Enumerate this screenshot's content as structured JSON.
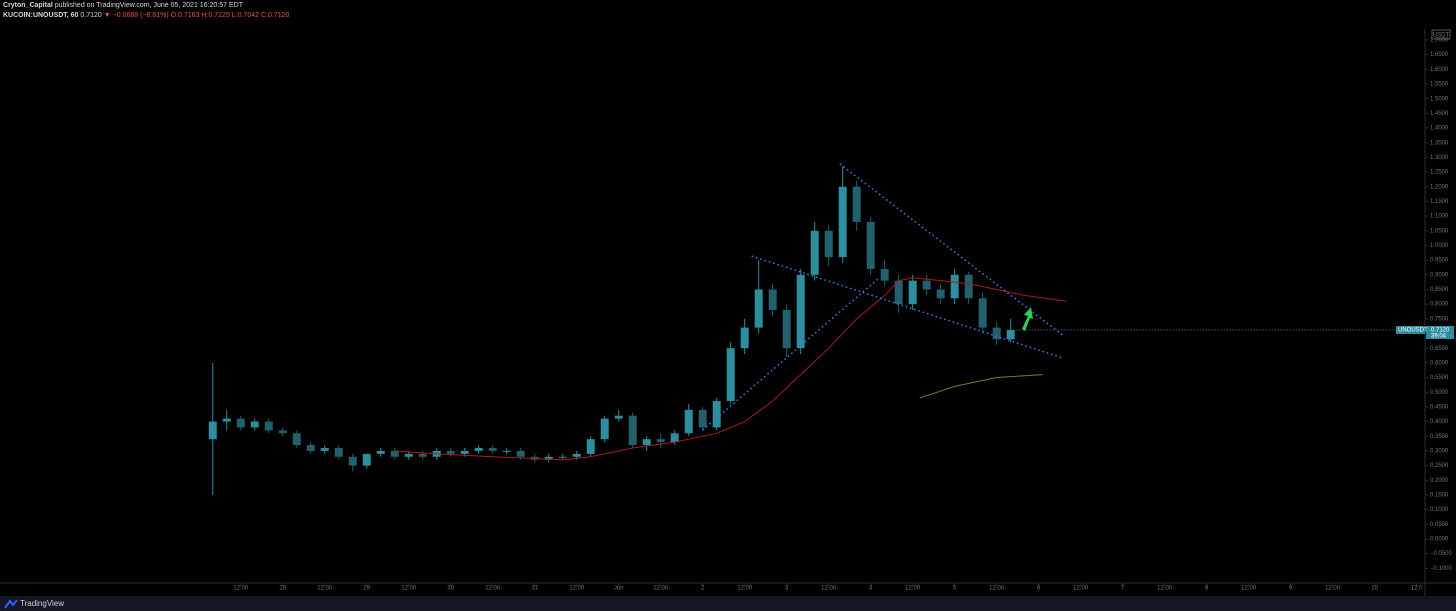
{
  "header": {
    "author": "Cryton_Capital",
    "published": "published on TradingView.com, June 05, 2021 16:20:57 EDT",
    "symbol": "KUCOIN:UNOUSDT, 60",
    "last": "0.7120",
    "change": "▼ −0.0688 (−8.81%)",
    "open": "O:0.7163",
    "high": "H:0.7225",
    "low": "L:0.7042",
    "close": "C:0.7120"
  },
  "chart_data": {
    "type": "candlestick",
    "x": [
      0,
      1,
      2,
      3,
      4,
      5,
      6,
      7,
      8,
      9,
      10,
      11,
      12,
      13,
      14,
      15,
      16,
      17,
      18,
      19,
      20,
      21,
      22,
      23,
      24,
      25,
      26,
      27,
      28,
      29,
      30,
      31,
      32,
      33,
      34,
      35,
      36,
      37,
      38,
      39,
      40,
      41,
      42,
      43,
      44,
      45,
      46,
      47,
      48,
      49,
      50,
      51,
      52,
      53,
      54,
      55,
      56,
      57
    ],
    "open": [
      0.34,
      0.4,
      0.41,
      0.38,
      0.4,
      0.37,
      0.36,
      0.32,
      0.3,
      0.31,
      0.28,
      0.25,
      0.29,
      0.3,
      0.28,
      0.29,
      0.28,
      0.3,
      0.29,
      0.3,
      0.31,
      0.3,
      0.3,
      0.28,
      0.27,
      0.28,
      0.28,
      0.29,
      0.34,
      0.41,
      0.42,
      0.32,
      0.34,
      0.33,
      0.36,
      0.44,
      0.38,
      0.47,
      0.65,
      0.72,
      0.85,
      0.78,
      0.65,
      0.9,
      1.05,
      0.96,
      1.2,
      1.08,
      0.92,
      0.88,
      0.8,
      0.88,
      0.85,
      0.82,
      0.9,
      0.82,
      0.72,
      0.68
    ],
    "high": [
      0.6,
      0.44,
      0.42,
      0.41,
      0.41,
      0.38,
      0.37,
      0.33,
      0.32,
      0.32,
      0.29,
      0.29,
      0.31,
      0.31,
      0.3,
      0.3,
      0.31,
      0.31,
      0.31,
      0.32,
      0.32,
      0.31,
      0.31,
      0.29,
      0.29,
      0.29,
      0.3,
      0.35,
      0.42,
      0.44,
      0.43,
      0.35,
      0.36,
      0.37,
      0.46,
      0.45,
      0.48,
      0.67,
      0.75,
      0.95,
      0.87,
      0.8,
      0.92,
      1.08,
      1.07,
      1.27,
      1.22,
      1.1,
      0.95,
      0.9,
      0.9,
      0.9,
      0.87,
      0.92,
      0.91,
      0.84,
      0.74,
      0.75
    ],
    "low": [
      0.15,
      0.37,
      0.37,
      0.37,
      0.36,
      0.35,
      0.31,
      0.29,
      0.29,
      0.27,
      0.23,
      0.24,
      0.28,
      0.27,
      0.27,
      0.27,
      0.27,
      0.28,
      0.28,
      0.29,
      0.29,
      0.29,
      0.27,
      0.26,
      0.26,
      0.27,
      0.27,
      0.28,
      0.33,
      0.4,
      0.31,
      0.3,
      0.31,
      0.32,
      0.35,
      0.37,
      0.37,
      0.46,
      0.63,
      0.7,
      0.76,
      0.62,
      0.63,
      0.88,
      0.93,
      0.94,
      1.05,
      0.9,
      0.86,
      0.77,
      0.78,
      0.83,
      0.8,
      0.8,
      0.8,
      0.7,
      0.66,
      0.67
    ],
    "close": [
      0.4,
      0.41,
      0.38,
      0.4,
      0.37,
      0.36,
      0.32,
      0.3,
      0.31,
      0.28,
      0.25,
      0.29,
      0.3,
      0.28,
      0.29,
      0.28,
      0.3,
      0.29,
      0.3,
      0.31,
      0.3,
      0.3,
      0.28,
      0.27,
      0.28,
      0.28,
      0.29,
      0.34,
      0.41,
      0.42,
      0.32,
      0.34,
      0.33,
      0.36,
      0.44,
      0.38,
      0.47,
      0.65,
      0.72,
      0.85,
      0.78,
      0.65,
      0.9,
      1.05,
      0.96,
      1.2,
      1.08,
      0.92,
      0.88,
      0.8,
      0.88,
      0.85,
      0.82,
      0.9,
      0.82,
      0.72,
      0.68,
      0.712
    ],
    "color": "#2f8d9e",
    "lines": [
      {
        "color": "#b0191e",
        "x": [
          13,
          16,
          20,
          25,
          27,
          30,
          33,
          36,
          38,
          40,
          42,
          44,
          46,
          48,
          49,
          50,
          52,
          54,
          56,
          58,
          61
        ],
        "values": [
          0.3,
          0.29,
          0.28,
          0.27,
          0.28,
          0.31,
          0.33,
          0.36,
          0.4,
          0.47,
          0.56,
          0.65,
          0.75,
          0.83,
          0.88,
          0.89,
          0.88,
          0.87,
          0.85,
          0.83,
          0.81
        ]
      },
      {
        "color": "#5b8a2e",
        "x": [
          50.5,
          53,
          56,
          59.3
        ],
        "values": [
          0.48,
          0.52,
          0.55,
          0.56
        ]
      }
    ],
    "trendlines": [
      {
        "x": [
          44.8,
          60.7
        ],
        "values": [
          1.278,
          0.695
        ]
      },
      {
        "x": [
          38.5,
          60.7
        ],
        "values": [
          0.964,
          0.617
        ]
      },
      {
        "x": [
          35.0,
          47.6
        ],
        "values": [
          0.371,
          0.889
        ]
      }
    ],
    "trendline_color": "#3d7fe0",
    "xlim": [
      -15.2,
      86.6
    ],
    "xticks": [
      {
        "value": 2,
        "label": "12:00"
      },
      {
        "value": 5,
        "label": "28"
      },
      {
        "value": 8,
        "label": "12:00"
      },
      {
        "value": 11,
        "label": "29"
      },
      {
        "value": 14,
        "label": "12:00"
      },
      {
        "value": 17,
        "label": "30"
      },
      {
        "value": 20,
        "label": "12:00"
      },
      {
        "value": 23,
        "label": "31"
      },
      {
        "value": 26,
        "label": "12:00"
      },
      {
        "value": 29,
        "label": "Jun"
      },
      {
        "value": 32,
        "label": "12:00"
      },
      {
        "value": 35,
        "label": "2"
      },
      {
        "value": 38,
        "label": "12:00"
      },
      {
        "value": 41,
        "label": "3"
      },
      {
        "value": 44,
        "label": "12:00"
      },
      {
        "value": 47,
        "label": "4"
      },
      {
        "value": 50,
        "label": "12:00"
      },
      {
        "value": 53,
        "label": "5"
      },
      {
        "value": 56,
        "label": "12:00"
      },
      {
        "value": 59,
        "label": "6"
      },
      {
        "value": 62,
        "label": "12:00"
      },
      {
        "value": 65,
        "label": "7"
      },
      {
        "value": 68,
        "label": "12:00"
      },
      {
        "value": 71,
        "label": "8"
      },
      {
        "value": 74,
        "label": "12:00"
      },
      {
        "value": 77,
        "label": "9"
      },
      {
        "value": 80,
        "label": "12:00"
      },
      {
        "value": 83,
        "label": "10"
      },
      {
        "value": 86,
        "label": "12:0"
      }
    ],
    "ylim": [
      -0.15,
      1.734
    ],
    "yticks": [
      {
        "value": 1.7,
        "label": "1.7000"
      },
      {
        "value": 1.65,
        "label": "1.6500"
      },
      {
        "value": 1.6,
        "label": "1.6000"
      },
      {
        "value": 1.55,
        "label": "1.5500"
      },
      {
        "value": 1.5,
        "label": "1.5000"
      },
      {
        "value": 1.45,
        "label": "1.4500"
      },
      {
        "value": 1.4,
        "label": "1.4000"
      },
      {
        "value": 1.35,
        "label": "1.3500"
      },
      {
        "value": 1.3,
        "label": "1.3000"
      },
      {
        "value": 1.25,
        "label": "1.2500"
      },
      {
        "value": 1.2,
        "label": "1.2000"
      },
      {
        "value": 1.15,
        "label": "1.1500"
      },
      {
        "value": 1.1,
        "label": "1.1000"
      },
      {
        "value": 1.05,
        "label": "1.0500"
      },
      {
        "value": 1.0,
        "label": "1.0000"
      },
      {
        "value": 0.95,
        "label": "0.9500"
      },
      {
        "value": 0.9,
        "label": "0.9000"
      },
      {
        "value": 0.85,
        "label": "0.8500"
      },
      {
        "value": 0.8,
        "label": "0.8000"
      },
      {
        "value": 0.75,
        "label": "0.7500"
      },
      {
        "value": 0.7,
        "label": "0.7000"
      },
      {
        "value": 0.65,
        "label": "0.6500"
      },
      {
        "value": 0.6,
        "label": "0.6000"
      },
      {
        "value": 0.55,
        "label": "0.5500"
      },
      {
        "value": 0.5,
        "label": "0.5000"
      },
      {
        "value": 0.45,
        "label": "0.4500"
      },
      {
        "value": 0.4,
        "label": "0.4000"
      },
      {
        "value": 0.35,
        "label": "0.3500"
      },
      {
        "value": 0.3,
        "label": "0.3000"
      },
      {
        "value": 0.25,
        "label": "0.2500"
      },
      {
        "value": 0.2,
        "label": "0.2000"
      },
      {
        "value": 0.15,
        "label": "0.1500"
      },
      {
        "value": 0.1,
        "label": "0.1000"
      },
      {
        "value": 0.05,
        "label": "0.0500"
      },
      {
        "value": 0,
        "label": "0.0000"
      },
      {
        "value": -0.05,
        "label": "−0.0500"
      },
      {
        "value": -0.1,
        "label": "−0.1000"
      }
    ],
    "currency": "USDT",
    "price_tag": {
      "symbol": "UNOUSDT",
      "value": 0.712,
      "label": "0.7120",
      "countdown": "39:04"
    }
  },
  "footer": {
    "brand": "TradingView"
  }
}
